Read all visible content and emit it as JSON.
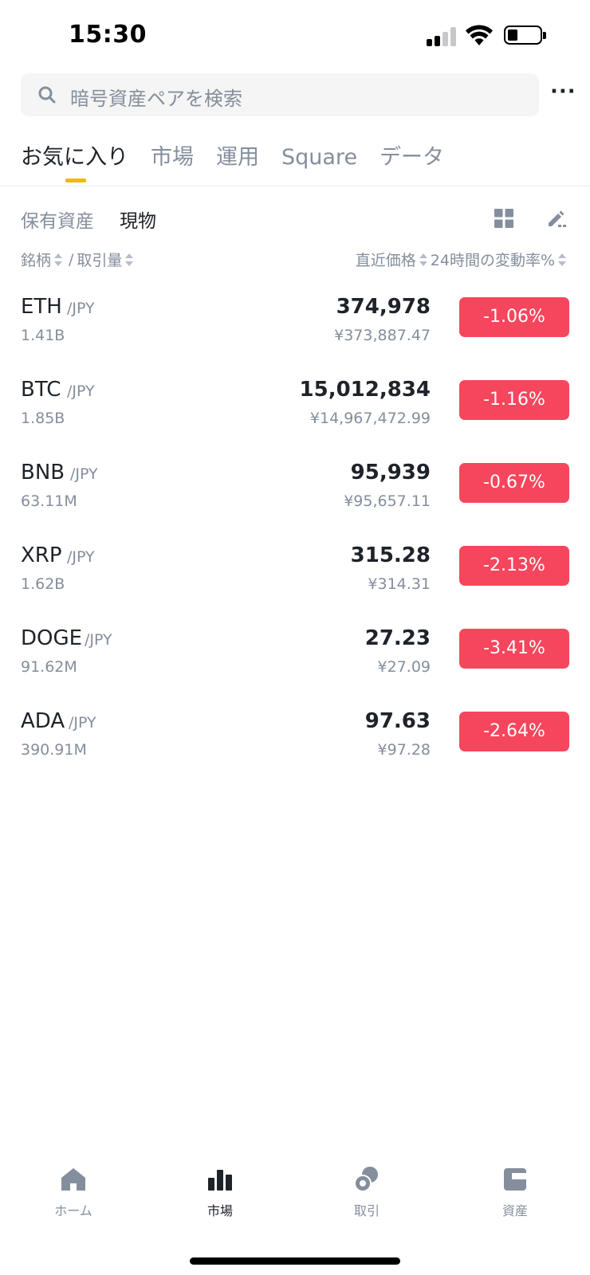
{
  "status_bar": {
    "time": "15:30"
  },
  "search": {
    "placeholder": "暗号資産ペアを検索"
  },
  "more_menu": "···",
  "main_tabs": [
    {
      "label": "お気に入り",
      "active": true
    },
    {
      "label": "市場",
      "active": false
    },
    {
      "label": "運用",
      "active": false
    },
    {
      "label": "Square",
      "active": false
    },
    {
      "label": "データ",
      "active": false
    }
  ],
  "sub_tabs": [
    {
      "label": "保有資産",
      "active": false
    },
    {
      "label": "現物",
      "active": true
    }
  ],
  "columns": {
    "symbol": "銘柄",
    "separator": "/",
    "volume": "取引量",
    "last_price": "直近価格",
    "change": "24時間の変動率%"
  },
  "rows": [
    {
      "base": "ETH",
      "quote": "/JPY",
      "volume": "1.41B",
      "price": "374,978",
      "fiat": "¥373,887.47",
      "change": "-1.06%"
    },
    {
      "base": "BTC",
      "quote": "/JPY",
      "volume": "1.85B",
      "price": "15,012,834",
      "fiat": "¥14,967,472.99",
      "change": "-1.16%"
    },
    {
      "base": "BNB",
      "quote": "/JPY",
      "volume": "63.11M",
      "price": "95,939",
      "fiat": "¥95,657.11",
      "change": "-0.67%"
    },
    {
      "base": "XRP",
      "quote": "/JPY",
      "volume": "1.62B",
      "price": "315.28",
      "fiat": "¥314.31",
      "change": "-2.13%"
    },
    {
      "base": "DOGE",
      "quote": "/JPY",
      "volume": "91.62M",
      "price": "27.23",
      "fiat": "¥27.09",
      "change": "-3.41%"
    },
    {
      "base": "ADA",
      "quote": "/JPY",
      "volume": "390.91M",
      "price": "97.63",
      "fiat": "¥97.28",
      "change": "-2.64%"
    }
  ],
  "bottom_nav": [
    {
      "label": "ホーム",
      "icon": "home-icon",
      "active": false
    },
    {
      "label": "市場",
      "icon": "bar-chart-icon",
      "active": true
    },
    {
      "label": "取引",
      "icon": "trade-icon",
      "active": false
    },
    {
      "label": "資産",
      "icon": "wallet-icon",
      "active": false
    }
  ],
  "colors": {
    "accent": "#f0b90b",
    "negative": "#f6465d",
    "muted": "#848e9c",
    "text": "#1e2329"
  }
}
